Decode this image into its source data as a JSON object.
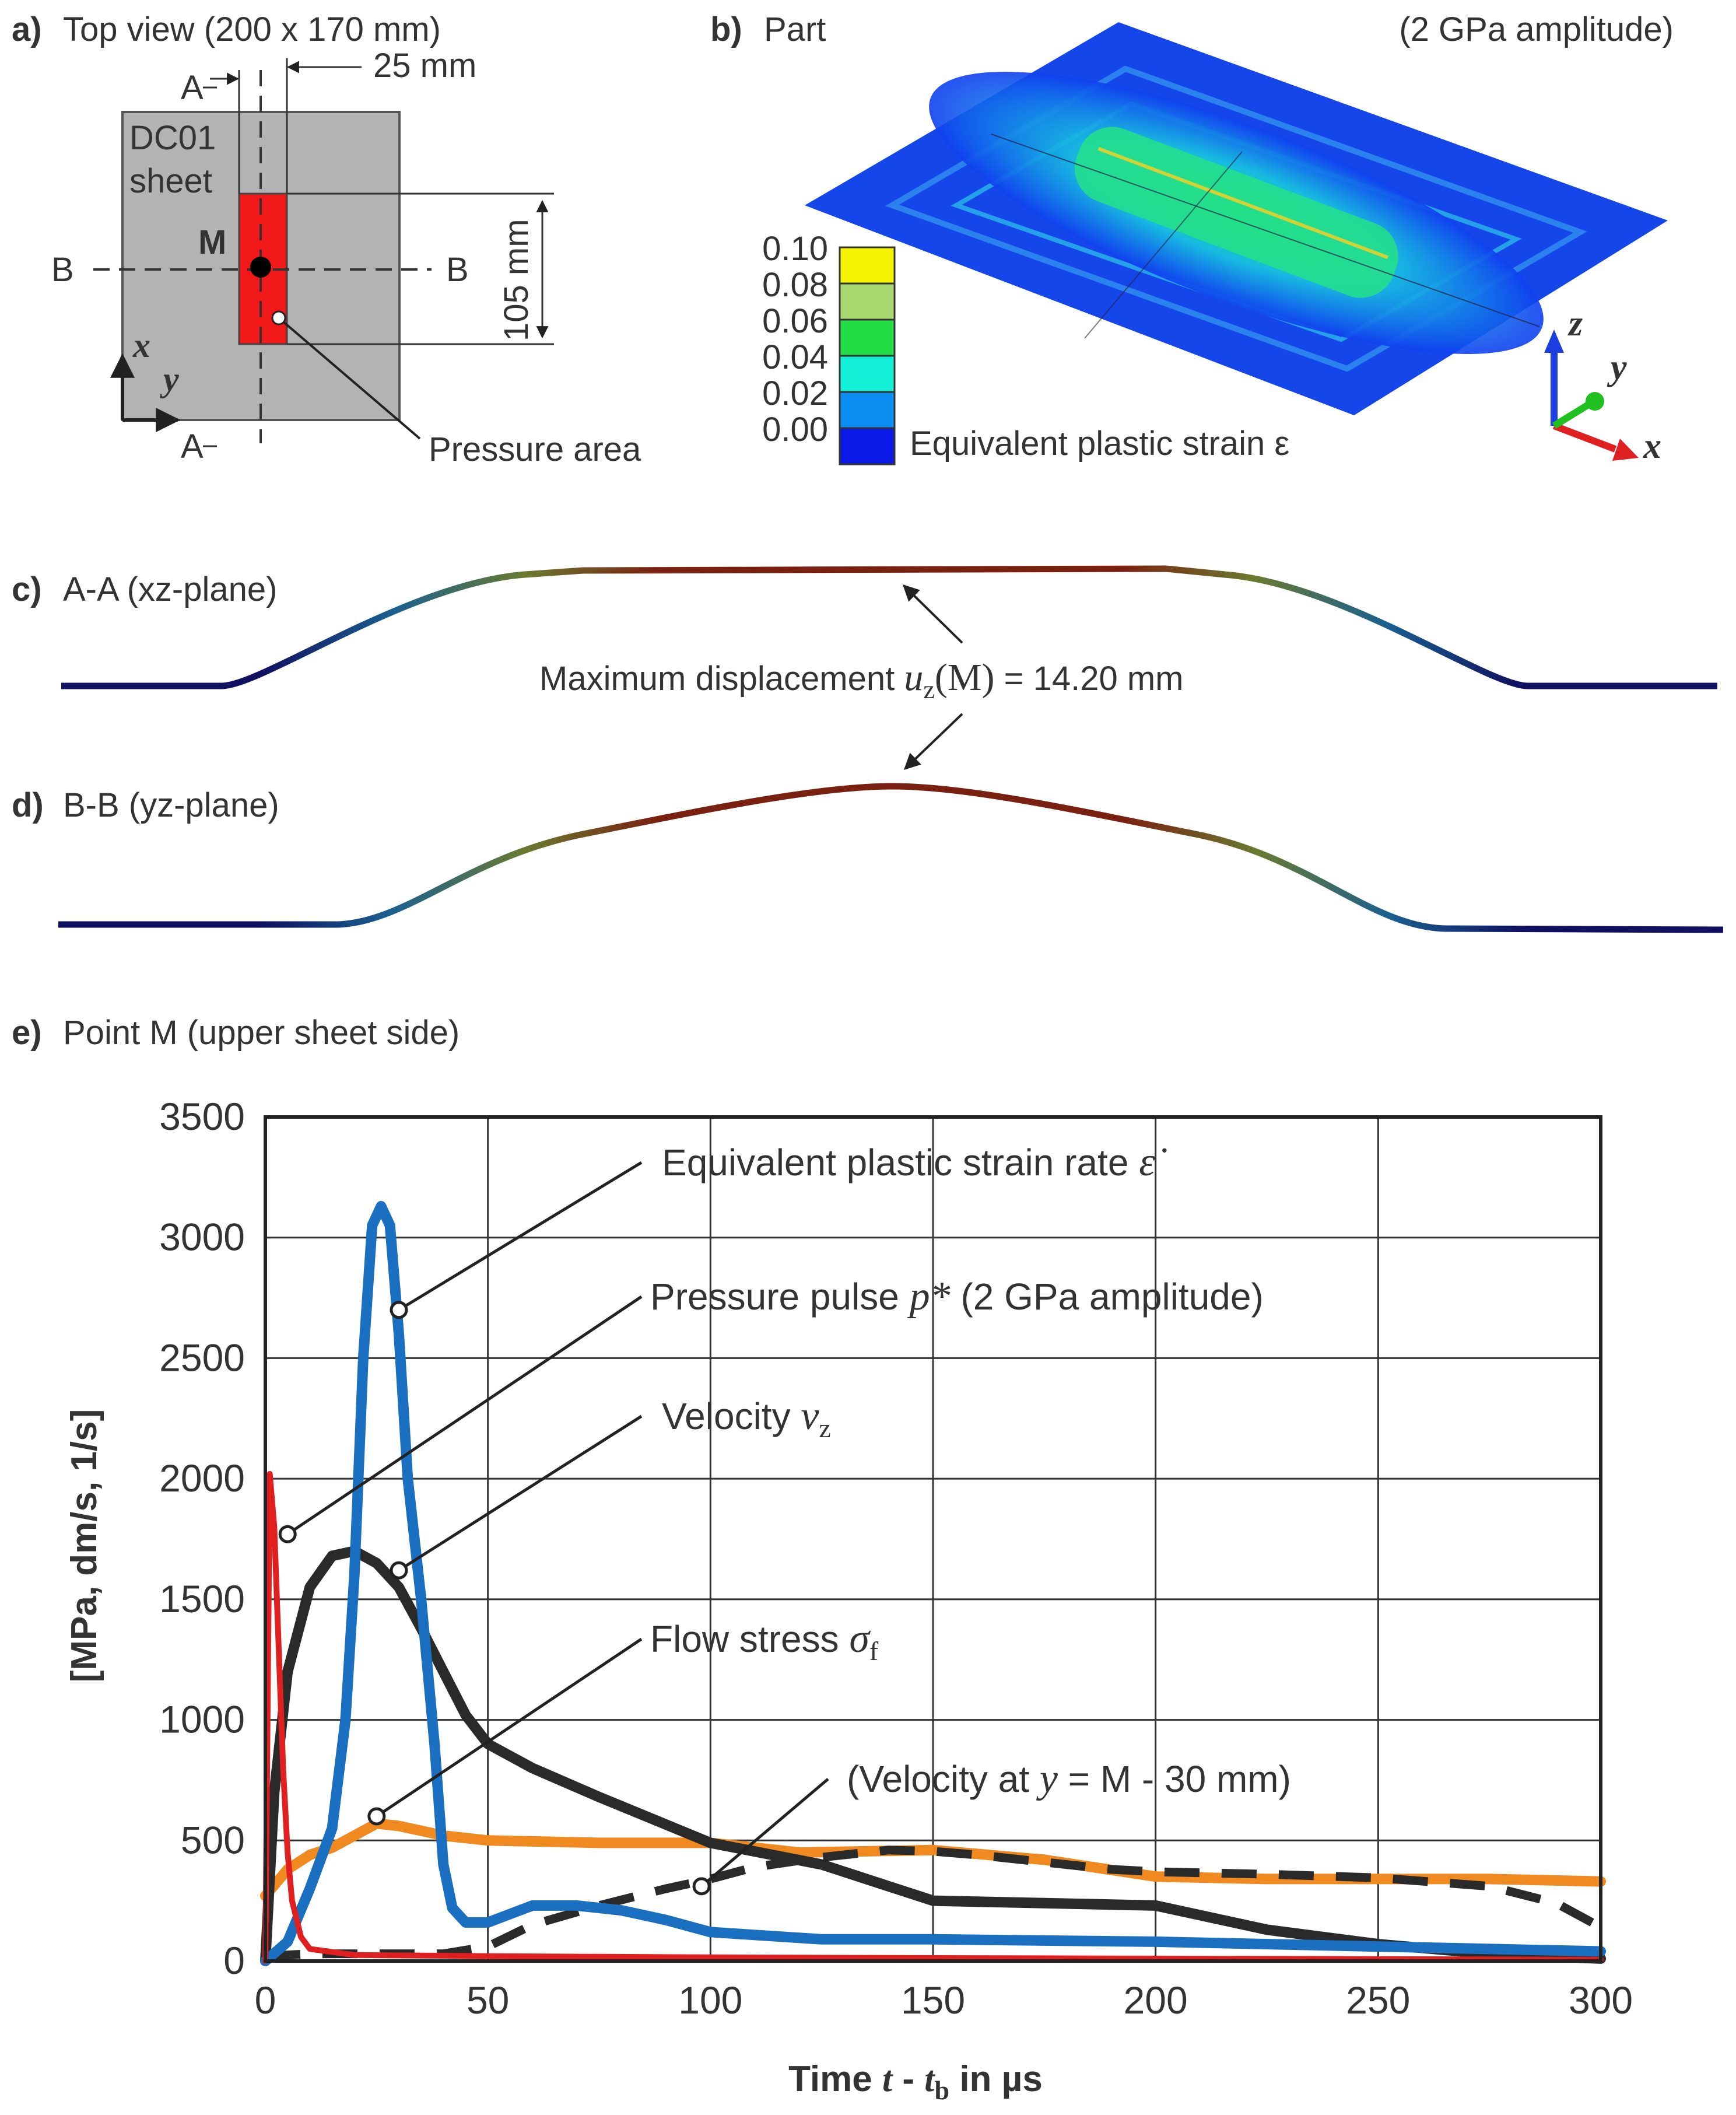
{
  "panel_a": {
    "letter": "a)",
    "title": "Top view (200 x 170 mm)",
    "dim_25": "25 mm",
    "dim_105": "105 mm",
    "sec_a_top": "A",
    "sec_a_bottom": "A",
    "sec_b_left": "B",
    "sec_b_right": "B",
    "sheet_line1": "DC01",
    "sheet_line2": "sheet",
    "point_m": "M",
    "axis_x": "x",
    "axis_y": "y",
    "pressure_area": "Pressure area"
  },
  "panel_b": {
    "letter": "b)",
    "title": "Part",
    "amplitude": "(2 GPa amplitude)",
    "legend_values": [
      "0.10",
      "0.08",
      "0.06",
      "0.04",
      "0.02",
      "0.00"
    ],
    "legend_colors": [
      "#f4f200",
      "#a9d870",
      "#22dd44",
      "#14f0d8",
      "#0a8ef2",
      "#0a18e8"
    ],
    "legend_title": "Equivalent plastic strain ε",
    "axis_z": "z",
    "axis_y": "y",
    "axis_x": "x"
  },
  "panel_c": {
    "letter": "c)",
    "title": "A-A (xz-plane)"
  },
  "panel_d": {
    "letter": "d)",
    "title": "B-B (yz-plane)"
  },
  "max_disp": {
    "prefix": "Maximum displacement ",
    "var": "u",
    "sub": "z",
    "arg": "(M)",
    "value": " = 14.20 mm"
  },
  "panel_e": {
    "letter": "e)",
    "title": "Point M (upper sheet side)"
  },
  "chart_data": {
    "type": "line",
    "title": "Point M (upper sheet side)",
    "xlabel": "Time t - tb in µs",
    "ylabel": "[MPa, dm/s, 1/s]",
    "xlim": [
      0,
      300
    ],
    "ylim": [
      0,
      3500
    ],
    "xticks": [
      "0",
      "50",
      "100",
      "150",
      "200",
      "250",
      "300"
    ],
    "yticks": [
      "0",
      "500",
      "1000",
      "1500",
      "2000",
      "2500",
      "3000",
      "3500"
    ],
    "grid": true,
    "series": [
      {
        "name": "Pressure pulse p* (2 GPa amplitude)",
        "color": "#e02020",
        "dash": false,
        "x": [
          0,
          1,
          2,
          3,
          4,
          5,
          6,
          8,
          10,
          20,
          50,
          100,
          150,
          200,
          250,
          300
        ],
        "y": [
          0,
          2020,
          1800,
          1300,
          800,
          450,
          250,
          100,
          50,
          25,
          20,
          15,
          12,
          10,
          8,
          5
        ]
      },
      {
        "name": "Velocity vz",
        "color": "#2a2a2a",
        "dash": false,
        "x": [
          0,
          2,
          5,
          10,
          15,
          20,
          25,
          30,
          35,
          40,
          45,
          50,
          60,
          75,
          100,
          125,
          150,
          175,
          200,
          225,
          250,
          275,
          300
        ],
        "y": [
          0,
          700,
          1200,
          1550,
          1680,
          1700,
          1650,
          1550,
          1380,
          1200,
          1020,
          900,
          800,
          680,
          490,
          400,
          250,
          240,
          230,
          130,
          70,
          30,
          10
        ]
      },
      {
        "name": "Equivalent plastic strain rate ε̇",
        "color": "#1a6fc0",
        "dash": false,
        "x": [
          0,
          5,
          10,
          15,
          18,
          20,
          22,
          24,
          26,
          28,
          30,
          32,
          35,
          38,
          40,
          42,
          45,
          50,
          60,
          70,
          80,
          90,
          100,
          125,
          150,
          200,
          250,
          300
        ],
        "y": [
          0,
          80,
          300,
          550,
          1000,
          1600,
          2500,
          3050,
          3130,
          3050,
          2600,
          2000,
          1500,
          900,
          400,
          220,
          160,
          160,
          230,
          230,
          210,
          170,
          120,
          90,
          90,
          80,
          60,
          40
        ]
      },
      {
        "name": "Flow stress σf",
        "color": "#f08a20",
        "dash": false,
        "x": [
          0,
          5,
          10,
          15,
          20,
          25,
          30,
          35,
          40,
          50,
          75,
          100,
          120,
          150,
          175,
          200,
          225,
          250,
          275,
          300
        ],
        "y": [
          270,
          380,
          440,
          470,
          520,
          570,
          560,
          540,
          520,
          500,
          490,
          490,
          450,
          460,
          420,
          350,
          340,
          340,
          340,
          330
        ]
      },
      {
        "name": "(Velocity at y = M - 30 mm)",
        "color": "#2a2a2a",
        "dash": true,
        "x": [
          0,
          10,
          20,
          30,
          40,
          50,
          60,
          75,
          90,
          100,
          110,
          125,
          140,
          150,
          160,
          175,
          190,
          200,
          225,
          250,
          275,
          290,
          300
        ],
        "y": [
          20,
          30,
          30,
          30,
          30,
          60,
          150,
          230,
          300,
          340,
          390,
          430,
          460,
          455,
          440,
          410,
          380,
          370,
          360,
          345,
          310,
          240,
          140
        ]
      }
    ],
    "annotations": [
      {
        "text_pre": "Equivalent plastic strain rate ",
        "sym": "ε̇"
      },
      {
        "text_pre": "Pressure pulse ",
        "sym": "p*",
        "text_post": " (2 GPa amplitude)"
      },
      {
        "text_pre": "Velocity ",
        "sym": "v",
        "sub": "z"
      },
      {
        "text_pre": "Flow stress ",
        "sym": "σ",
        "sub": "f"
      },
      {
        "text_pre": "(Velocity at ",
        "sym": "y",
        "text_post": " = M - 30 mm)"
      }
    ],
    "xlabel_parts": {
      "pre": "Time ",
      "t": "t",
      "mid": " - ",
      "tb": "t",
      "sub": "b",
      "post": " in µs"
    }
  }
}
